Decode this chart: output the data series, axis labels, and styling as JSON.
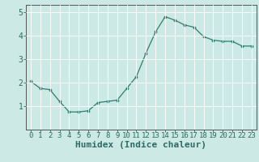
{
  "x": [
    0,
    1,
    2,
    3,
    4,
    5,
    6,
    7,
    8,
    9,
    10,
    11,
    12,
    13,
    14,
    15,
    16,
    17,
    18,
    19,
    20,
    21,
    22,
    23
  ],
  "y": [
    2.05,
    1.75,
    1.7,
    1.2,
    0.75,
    0.75,
    0.8,
    1.15,
    1.2,
    1.25,
    1.75,
    2.25,
    3.25,
    4.15,
    4.8,
    4.65,
    4.45,
    4.35,
    3.95,
    3.8,
    3.75,
    3.75,
    3.55,
    3.55
  ],
  "line_color": "#2e7d6e",
  "marker": "o",
  "marker_size": 2.2,
  "bg_color": "#cce9e5",
  "grid_color": "#ffffff",
  "axis_color": "#555555",
  "tick_color": "#2e6b60",
  "xlabel": "Humidex (Indice chaleur)",
  "xlabel_fontsize": 8,
  "xlim": [
    -0.5,
    23.5
  ],
  "ylim": [
    0,
    5.3
  ],
  "yticks": [
    1,
    2,
    3,
    4,
    5
  ],
  "xticks": [
    0,
    1,
    2,
    3,
    4,
    5,
    6,
    7,
    8,
    9,
    10,
    11,
    12,
    13,
    14,
    15,
    16,
    17,
    18,
    19,
    20,
    21,
    22,
    23
  ],
  "tick_fontsize": 6.5
}
